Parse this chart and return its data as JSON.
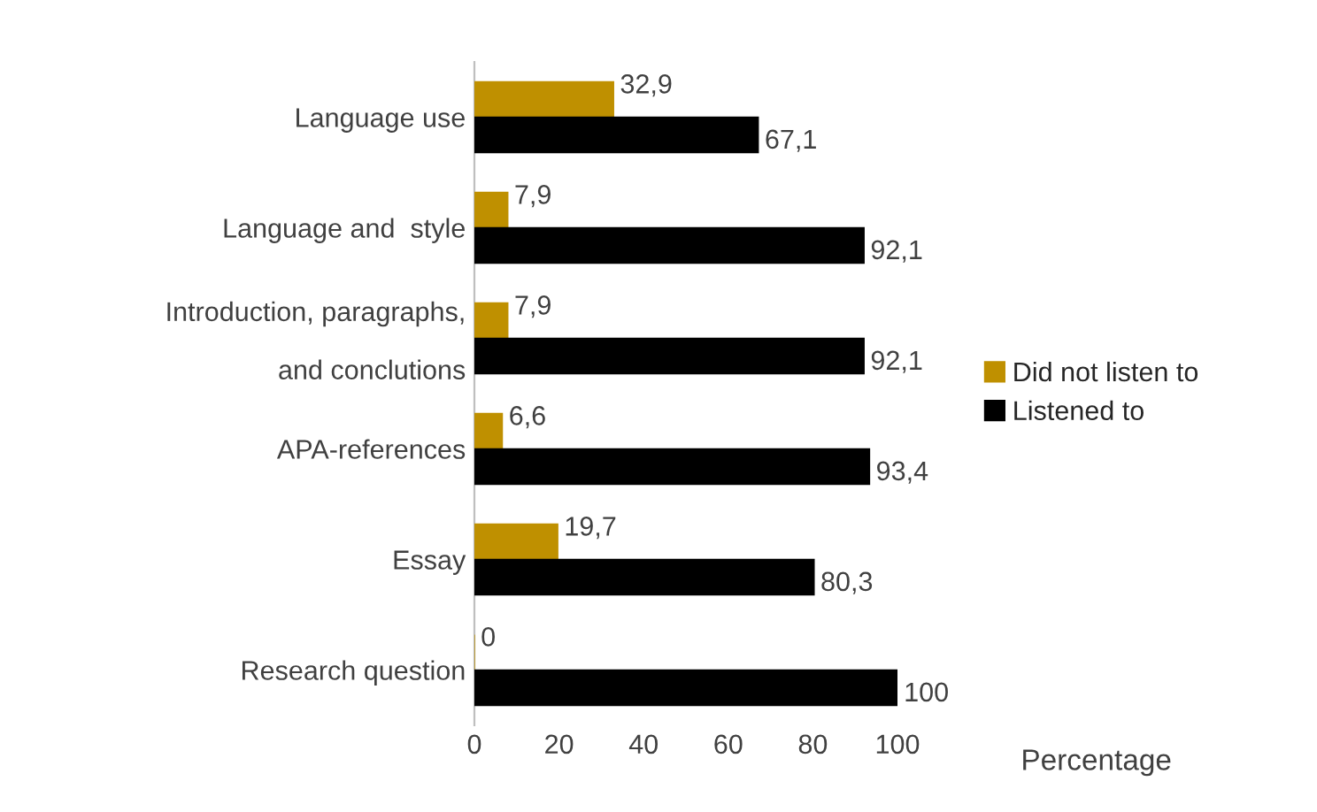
{
  "chart_data": {
    "type": "bar",
    "orientation": "horizontal",
    "xlabel": "Percentage",
    "categories": [
      "Language use",
      "Language and  style",
      "Introduction, paragraphs,\n\nand conclutions",
      "APA-references",
      "Essay",
      "Research question"
    ],
    "series": [
      {
        "name": "Did not listen to",
        "color": "#bf9000",
        "values": [
          32.9,
          7.9,
          7.9,
          6.6,
          19.7,
          0
        ],
        "value_labels": [
          "32,9",
          "7,9",
          "7,9",
          "6,6",
          "19,7",
          "0"
        ]
      },
      {
        "name": "Listened to",
        "color": "#000000",
        "values": [
          67.1,
          92.1,
          92.1,
          93.4,
          80.3,
          100
        ],
        "value_labels": [
          "67,1",
          "92,1",
          "92,1",
          "93,4",
          "80,3",
          "100"
        ]
      }
    ],
    "xlim": [
      0,
      100
    ],
    "xticks": [
      0,
      20,
      40,
      60,
      80,
      100
    ],
    "grid": false,
    "legend": "right"
  }
}
